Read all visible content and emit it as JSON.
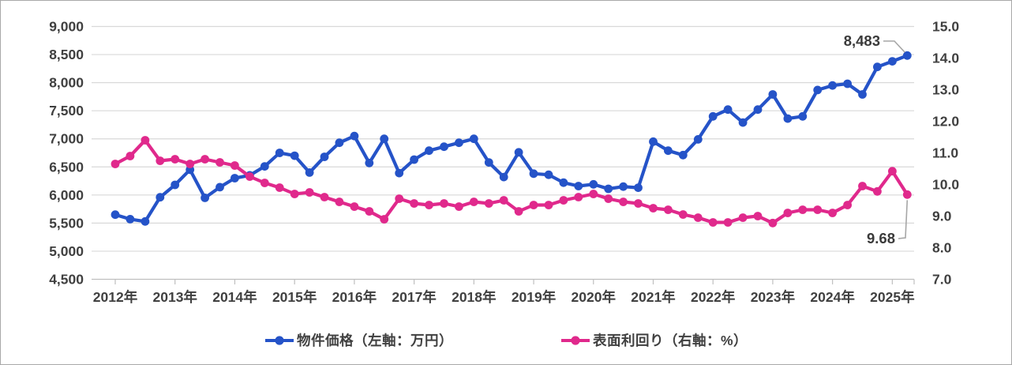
{
  "chart_data": {
    "type": "line",
    "title": "",
    "points_per_year": 4,
    "x_labels": [
      "2012年",
      "2013年",
      "2014年",
      "2015年",
      "2016年",
      "2017年",
      "2018年",
      "2019年",
      "2020年",
      "2021年",
      "2022年",
      "2023年",
      "2024年",
      "2025年"
    ],
    "left_axis": {
      "min": 4500,
      "max": 9000,
      "step": 500,
      "unit": "万円",
      "labels": [
        "9,000",
        "8,500",
        "8,000",
        "7,500",
        "7,000",
        "6,500",
        "6,000",
        "5,500",
        "5,000",
        "4,500"
      ]
    },
    "right_axis": {
      "min": 7.0,
      "max": 15.0,
      "step": 1.0,
      "unit": "%",
      "labels": [
        "15.0",
        "14.0",
        "13.0",
        "12.0",
        "11.0",
        "10.0",
        "9.0",
        "8.0",
        "7.0"
      ]
    },
    "grid": "horizontal",
    "legend_position": "bottom",
    "series": [
      {
        "name": "物件価格（左軸：万円）",
        "axis": "left",
        "color": "#2553c8",
        "last_value_label": "8,483",
        "values": [
          5650,
          5570,
          5530,
          5960,
          6180,
          6450,
          5950,
          6140,
          6300,
          6350,
          6510,
          6750,
          6700,
          6400,
          6680,
          6930,
          7050,
          6570,
          7000,
          6390,
          6630,
          6790,
          6860,
          6930,
          7000,
          6580,
          6320,
          6760,
          6380,
          6360,
          6220,
          6160,
          6190,
          6110,
          6150,
          6130,
          6950,
          6790,
          6710,
          6990,
          7400,
          7520,
          7290,
          7520,
          7790,
          7360,
          7400,
          7870,
          7950,
          7980,
          7790,
          8280,
          8380,
          8483
        ]
      },
      {
        "name": "表面利回り（右軸：%）",
        "axis": "right",
        "color": "#e0298c",
        "last_value_label": "9.68",
        "values": [
          10.65,
          10.9,
          11.4,
          10.75,
          10.8,
          10.65,
          10.8,
          10.7,
          10.6,
          10.25,
          10.05,
          9.9,
          9.7,
          9.75,
          9.6,
          9.45,
          9.3,
          9.15,
          8.9,
          9.55,
          9.4,
          9.35,
          9.4,
          9.3,
          9.45,
          9.4,
          9.5,
          9.15,
          9.35,
          9.35,
          9.5,
          9.6,
          9.7,
          9.55,
          9.45,
          9.4,
          9.25,
          9.2,
          9.05,
          8.95,
          8.8,
          8.8,
          8.95,
          9.0,
          8.78,
          9.1,
          9.2,
          9.2,
          9.1,
          9.35,
          9.95,
          9.78,
          10.42,
          9.68
        ]
      }
    ],
    "annotations": [
      {
        "text": "8,483",
        "series": 0,
        "point_index": 53
      },
      {
        "text": "9.68",
        "series": 1,
        "point_index": 53
      }
    ]
  },
  "legend": {
    "items": [
      {
        "label": "物件価格（左軸：万円）",
        "color": "#2553c8"
      },
      {
        "label": "表面利回り（右軸：%）",
        "color": "#e0298c"
      }
    ]
  },
  "colors": {
    "gridline": "#d9d9d9",
    "axis_line": "#bfbfbf",
    "tick": "#bfbfbf",
    "axis_text": "#404040",
    "annotation_text": "#3a3a3a",
    "leader_line": "#a6a6a6"
  }
}
